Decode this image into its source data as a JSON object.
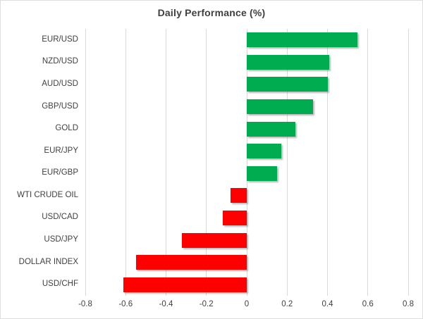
{
  "chart_data": {
    "type": "bar",
    "orientation": "horizontal",
    "title": "Daily Performance (%)",
    "categories": [
      "EUR/USD",
      "NZD/USD",
      "AUD/USD",
      "GBP/USD",
      "GOLD",
      "EUR/JPY",
      "EUR/GBP",
      "WTI CRUDE OIL",
      "USD/CAD",
      "USD/JPY",
      "DOLLAR INDEX",
      "USD/CHF"
    ],
    "values": [
      0.55,
      0.41,
      0.4,
      0.33,
      0.24,
      0.17,
      0.15,
      -0.08,
      -0.12,
      -0.32,
      -0.55,
      -0.61
    ],
    "xlim": [
      -0.8,
      0.8
    ],
    "xticks": [
      -0.8,
      -0.6,
      -0.4,
      -0.2,
      0,
      0.2,
      0.4,
      0.6,
      0.8
    ],
    "xtick_labels": [
      "-0.8",
      "-0.6",
      "-0.4",
      "-0.2",
      "0",
      "0.2",
      "0.4",
      "0.6",
      "0.8"
    ],
    "grid": true,
    "legend": false,
    "ylabel": "",
    "xlabel": ""
  },
  "colors": {
    "positive_bar": "#00AC50",
    "negative_bar": "#FF0000",
    "gridline": "#d9d9d9",
    "text": "#404040",
    "title_text": "#3f3f3f",
    "border": "#dedede",
    "background": "#ffffff"
  }
}
